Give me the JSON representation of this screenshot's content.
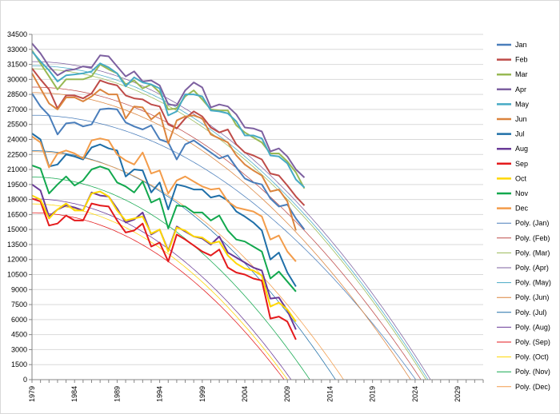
{
  "chart_data": {
    "type": "line",
    "title": "",
    "xlabel": "",
    "ylabel": "",
    "xlim": [
      1979,
      2032
    ],
    "ylim": [
      0,
      34500
    ],
    "grid": true,
    "legend_position": "right",
    "x_ticks": [
      "1979",
      "1984",
      "1989",
      "1994",
      "1999",
      "2004",
      "2009",
      "2014",
      "2019",
      "2024",
      "2029"
    ],
    "y_ticks": [
      "0",
      "1500",
      "3000",
      "4500",
      "6000",
      "7500",
      "9000",
      "10500",
      "12000",
      "13500",
      "15000",
      "16500",
      "18000",
      "19500",
      "21000",
      "22500",
      "24000",
      "25500",
      "27000",
      "28500",
      "30000",
      "31500",
      "33000",
      "34500"
    ],
    "years": [
      1979,
      1980,
      1981,
      1982,
      1983,
      1984,
      1985,
      1986,
      1987,
      1988,
      1989,
      1990,
      1991,
      1992,
      1993,
      1994,
      1995,
      1996,
      1997,
      1998,
      1999,
      2000,
      2001,
      2002,
      2003,
      2004,
      2005,
      2006,
      2007,
      2008,
      2009,
      2010,
      2011
    ],
    "series": [
      {
        "name": "Jan",
        "color": "#4a7ebb",
        "values": [
          28600,
          27300,
          26400,
          24500,
          25600,
          25700,
          25300,
          25500,
          27000,
          27100,
          27000,
          25700,
          25300,
          25000,
          25400,
          24000,
          23700,
          22000,
          23500,
          23900,
          23300,
          22700,
          22100,
          22400,
          21200,
          20100,
          19700,
          19500,
          18100,
          17300,
          17500,
          16100,
          15000
        ]
      },
      {
        "name": "Feb",
        "color": "#be4b48",
        "values": [
          31100,
          30000,
          29000,
          27100,
          28400,
          28400,
          28100,
          28600,
          29900,
          29600,
          29400,
          28400,
          28100,
          28000,
          27500,
          27300,
          25500,
          25100,
          26100,
          26800,
          26300,
          25200,
          24700,
          25000,
          23500,
          22700,
          22400,
          22000,
          20600,
          20400,
          19400,
          18300,
          17400
        ]
      },
      {
        "name": "Mar",
        "color": "#98b954",
        "values": [
          32900,
          31600,
          30300,
          29000,
          30000,
          30000,
          30000,
          30300,
          31500,
          31000,
          30600,
          29500,
          29900,
          29100,
          29500,
          28700,
          27000,
          27100,
          28300,
          28900,
          28000,
          27000,
          26900,
          26900,
          25400,
          24700,
          24200,
          23700,
          22600,
          22600,
          21800,
          20700,
          19100
        ]
      },
      {
        "name": "Apr",
        "color": "#7d60a0",
        "values": [
          33600,
          32600,
          31300,
          30400,
          30900,
          31000,
          31300,
          31200,
          32400,
          32300,
          31300,
          30300,
          30800,
          29800,
          29900,
          29400,
          27500,
          27400,
          28900,
          29700,
          29200,
          27200,
          27500,
          27300,
          26500,
          25200,
          25100,
          24800,
          22800,
          23100,
          22300,
          21000,
          20200
        ]
      },
      {
        "name": "May",
        "color": "#46aac5",
        "values": [
          32800,
          31800,
          30900,
          29800,
          30400,
          30500,
          30600,
          30800,
          31600,
          31200,
          30600,
          29300,
          30200,
          29700,
          29500,
          29100,
          26400,
          26800,
          28500,
          28500,
          28300,
          26900,
          26800,
          26600,
          25800,
          24400,
          24400,
          24100,
          22400,
          22300,
          21600,
          20000,
          19200
        ]
      },
      {
        "name": "Jun",
        "color": "#db843d",
        "values": [
          30600,
          29100,
          27600,
          27000,
          28200,
          28200,
          27800,
          28300,
          29000,
          28500,
          28500,
          26100,
          27300,
          27200,
          26000,
          26700,
          23600,
          25900,
          26300,
          26400,
          26100,
          24500,
          24100,
          23700,
          22400,
          21500,
          20900,
          20400,
          18800,
          19000,
          17800,
          14900
        ]
      },
      {
        "name": "Jul",
        "color": "#1f6fa8",
        "values": [
          24600,
          24000,
          21300,
          21500,
          22500,
          22300,
          22000,
          23200,
          23500,
          23100,
          22900,
          20300,
          21000,
          20900,
          18700,
          19700,
          17000,
          19500,
          19300,
          19000,
          19000,
          18200,
          18400,
          17900,
          16800,
          16300,
          15700,
          14900,
          12000,
          12700,
          10700,
          9300
        ]
      },
      {
        "name": "Aug",
        "color": "#6a3a98",
        "values": [
          19500,
          18900,
          16300,
          17000,
          17400,
          17200,
          16900,
          18700,
          18400,
          18300,
          17100,
          15700,
          16000,
          16700,
          14500,
          15000,
          12900,
          15300,
          14800,
          14300,
          14100,
          13500,
          14300,
          12700,
          12200,
          11700,
          11200,
          10900,
          8100,
          8200,
          6900,
          5000
        ]
      },
      {
        "name": "Sep",
        "color": "#e41a1c",
        "values": [
          18100,
          17800,
          15400,
          15600,
          16400,
          15900,
          15900,
          17600,
          17400,
          17300,
          15900,
          14700,
          14900,
          15600,
          13300,
          13700,
          11800,
          14500,
          14000,
          13400,
          12800,
          12400,
          13000,
          11200,
          10700,
          10500,
          10100,
          9900,
          6100,
          6300,
          5800,
          4000
        ]
      },
      {
        "name": "Oct",
        "color": "#ffd700",
        "values": [
          18400,
          18000,
          16100,
          17000,
          17600,
          16900,
          16900,
          18600,
          18800,
          18300,
          16900,
          15900,
          16100,
          16300,
          14600,
          15000,
          12800,
          15200,
          14900,
          14300,
          14200,
          13600,
          13800,
          12400,
          11600,
          11100,
          10900,
          10400,
          7300,
          7700,
          7000,
          5800
        ]
      },
      {
        "name": "Nov",
        "color": "#12a84e",
        "values": [
          21400,
          21100,
          18600,
          19500,
          20300,
          19400,
          19900,
          21000,
          21300,
          21000,
          19700,
          19300,
          18700,
          19800,
          17700,
          18100,
          15100,
          17400,
          17300,
          16700,
          16700,
          15900,
          16400,
          14900,
          14000,
          13800,
          13300,
          12800,
          10100,
          10800,
          9800,
          8800
        ]
      },
      {
        "name": "Dec",
        "color": "#f39c4a",
        "values": [
          24300,
          23700,
          21200,
          22600,
          22900,
          22600,
          22100,
          23900,
          24100,
          23900,
          22500,
          21900,
          21500,
          22700,
          20600,
          20900,
          18600,
          19900,
          20300,
          19800,
          19300,
          19000,
          19100,
          17800,
          17200,
          17000,
          16800,
          16300,
          14000,
          14400,
          12800,
          11800
        ]
      },
      {
        "name": "Poly. (Jan)",
        "color": "#4a7ebb",
        "trend": true,
        "coef": [
          26420,
          -1.3
        ]
      },
      {
        "name": "Poly. (Feb)",
        "color": "#be4b48",
        "trend": true,
        "coef": [
          29230,
          -1.4
        ]
      },
      {
        "name": "Poly. (Mar)",
        "color": "#98b954",
        "trend": true,
        "coef": [
          31060,
          -1.45
        ]
      },
      {
        "name": "Poly. (Apr)",
        "color": "#7d60a0",
        "trend": true,
        "coef": [
          31780,
          -1.45
        ]
      },
      {
        "name": "Poly. (May)",
        "color": "#46aac5",
        "trend": true,
        "coef": [
          31370,
          -1.45
        ]
      },
      {
        "name": "Poly. (Jun)",
        "color": "#db843d",
        "trend": true,
        "coef": [
          28680,
          -1.45
        ]
      },
      {
        "name": "Poly. (Jul)",
        "color": "#1f6fa8",
        "trend": true,
        "coef": [
          22880,
          -1.8
        ]
      },
      {
        "name": "Poly. (Aug)",
        "color": "#6a3a98",
        "trend": true,
        "coef": [
          18070,
          -1.95
        ]
      },
      {
        "name": "Poly. (Sep)",
        "color": "#e41a1c",
        "trend": true,
        "coef": [
          16670,
          -1.9
        ]
      },
      {
        "name": "Poly. (Oct)",
        "color": "#ffd700",
        "trend": true,
        "coef": [
          17560,
          -1.95
        ]
      },
      {
        "name": "Poly. (Nov)",
        "color": "#12a84e",
        "trend": true,
        "coef": [
          20240,
          -1.9
        ]
      },
      {
        "name": "Poly. (Dec)",
        "color": "#f39c4a",
        "trend": true,
        "coef": [
          22780,
          -1.7
        ]
      }
    ]
  }
}
